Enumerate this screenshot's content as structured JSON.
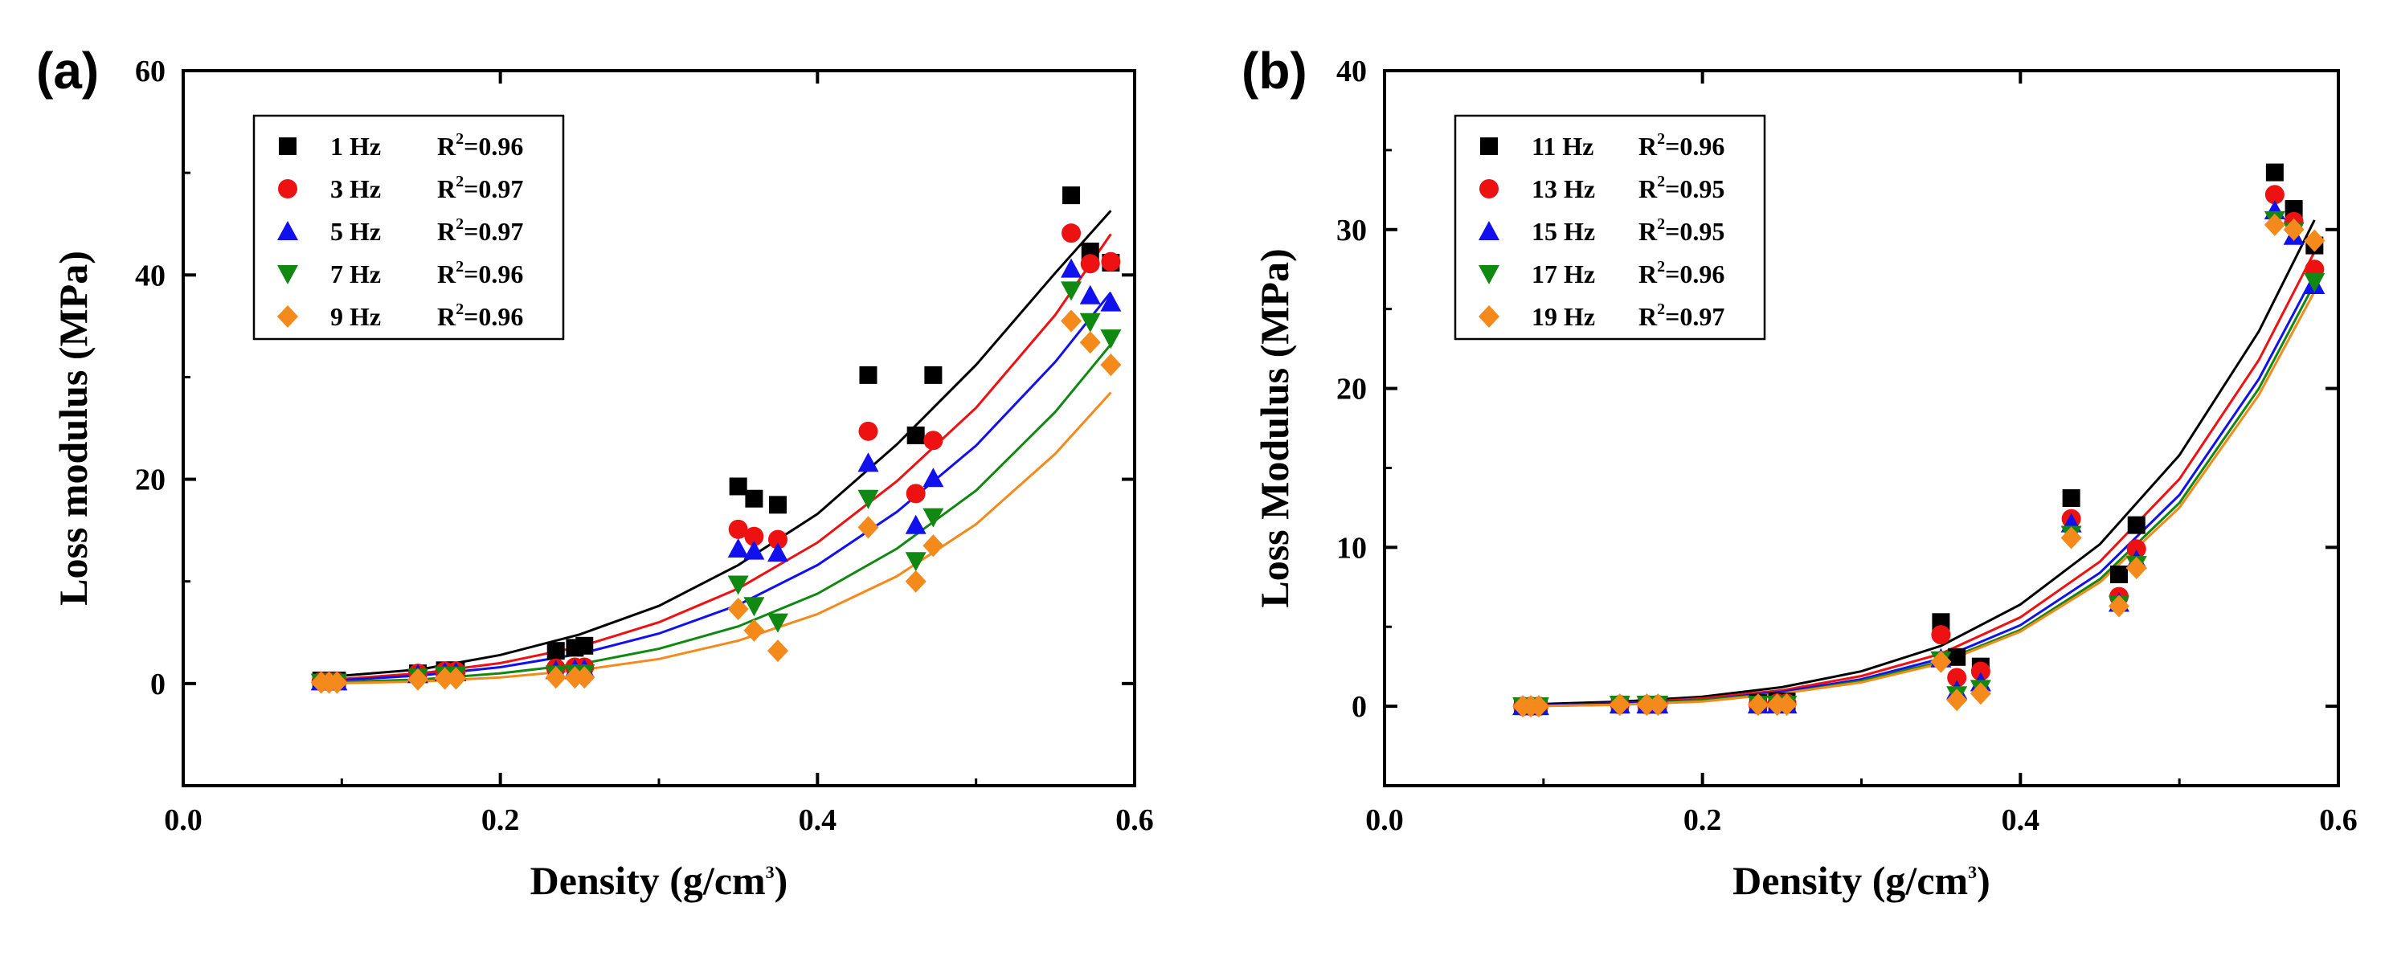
{
  "chart_data": [
    {
      "type": "scatter",
      "panel_label": "(a)",
      "xlabel": "Density (g/cm3)",
      "xlabel_parts": {
        "main": "Density (g/cm",
        "sup": "3",
        "close": ")"
      },
      "ylabel": "Loss modulus (MPa)",
      "xlim": [
        0.0,
        0.6
      ],
      "ylim": [
        -10,
        60
      ],
      "xticks": [
        0.0,
        0.2,
        0.4,
        0.6
      ],
      "xtick_labels": [
        "0.0",
        "0.2",
        "0.4",
        "0.6"
      ],
      "yticks": [
        0,
        20,
        40,
        60
      ],
      "ytick_labels": [
        "0",
        "20",
        "40",
        "60"
      ],
      "grid": false,
      "legend_position": "top-left",
      "fit": "exponential",
      "x": [
        0.087,
        0.092,
        0.097,
        0.148,
        0.165,
        0.172,
        0.235,
        0.247,
        0.253,
        0.35,
        0.36,
        0.375,
        0.432,
        0.462,
        0.473,
        0.56,
        0.572,
        0.585
      ],
      "series": [
        {
          "name": "1 Hz",
          "r2_label": "R",
          "r2_value": "=0.96",
          "color": "#000000",
          "marker": "square",
          "values": [
            0.3,
            0.3,
            0.3,
            1.0,
            1.3,
            1.3,
            3.2,
            3.5,
            3.7,
            19.3,
            18.1,
            17.5,
            30.2,
            24.3,
            30.2,
            47.8,
            42.3,
            41.2
          ],
          "fit_points": [
            [
              0.087,
              0.6
            ],
            [
              0.15,
              1.4
            ],
            [
              0.2,
              2.8
            ],
            [
              0.25,
              4.8
            ],
            [
              0.3,
              7.6
            ],
            [
              0.35,
              11.6
            ],
            [
              0.4,
              16.6
            ],
            [
              0.45,
              23.4
            ],
            [
              0.5,
              31.2
            ],
            [
              0.55,
              40.2
            ],
            [
              0.585,
              46.3
            ]
          ]
        },
        {
          "name": "3 Hz",
          "r2_label": "R",
          "r2_value": "=0.97",
          "color": "#ee1111",
          "marker": "circle",
          "values": [
            0.2,
            0.2,
            0.2,
            1.0,
            1.2,
            1.2,
            1.5,
            1.6,
            1.6,
            15.1,
            14.4,
            14.1,
            24.7,
            18.6,
            23.8,
            44.1,
            41.1,
            41.3
          ],
          "fit_points": [
            [
              0.087,
              0.3
            ],
            [
              0.15,
              1.0
            ],
            [
              0.2,
              2.0
            ],
            [
              0.25,
              3.6
            ],
            [
              0.3,
              6.0
            ],
            [
              0.35,
              9.3
            ],
            [
              0.4,
              13.8
            ],
            [
              0.45,
              19.8
            ],
            [
              0.5,
              27.0
            ],
            [
              0.55,
              36.1
            ],
            [
              0.585,
              44.0
            ]
          ]
        },
        {
          "name": "5 Hz",
          "r2_label": "R",
          "r2_value": "=0.97",
          "color": "#1111ee",
          "marker": "triangle-up",
          "values": [
            0.2,
            0.2,
            0.2,
            0.9,
            1.1,
            1.1,
            1.3,
            1.4,
            1.4,
            13.2,
            13.0,
            12.8,
            21.6,
            15.5,
            20.1,
            40.6,
            38.0,
            37.3
          ],
          "fit_points": [
            [
              0.087,
              0.2
            ],
            [
              0.15,
              0.8
            ],
            [
              0.2,
              1.6
            ],
            [
              0.25,
              2.9
            ],
            [
              0.3,
              4.9
            ],
            [
              0.35,
              7.7
            ],
            [
              0.4,
              11.6
            ],
            [
              0.45,
              16.8
            ],
            [
              0.5,
              23.3
            ],
            [
              0.55,
              31.5
            ],
            [
              0.585,
              38.3
            ]
          ]
        },
        {
          "name": "7 Hz",
          "r2_label": "R",
          "r2_value": "=0.96",
          "color": "#118811",
          "marker": "triangle-down",
          "values": [
            0.1,
            0.1,
            0.1,
            0.6,
            0.8,
            0.8,
            0.9,
            1.0,
            1.0,
            9.7,
            7.6,
            6.0,
            18.1,
            12.0,
            16.3,
            38.5,
            35.4,
            33.8
          ],
          "fit_points": [
            [
              0.087,
              0.1
            ],
            [
              0.15,
              0.4
            ],
            [
              0.2,
              1.0
            ],
            [
              0.25,
              1.9
            ],
            [
              0.3,
              3.4
            ],
            [
              0.35,
              5.6
            ],
            [
              0.4,
              8.8
            ],
            [
              0.45,
              13.2
            ],
            [
              0.5,
              18.9
            ],
            [
              0.55,
              26.6
            ],
            [
              0.585,
              33.2
            ]
          ]
        },
        {
          "name": "9 Hz",
          "r2_label": "R",
          "r2_value": "=0.96",
          "color": "#f58a1c",
          "marker": "diamond",
          "values": [
            0.1,
            0.1,
            0.1,
            0.4,
            0.5,
            0.5,
            0.6,
            0.6,
            0.6,
            7.3,
            5.2,
            3.2,
            15.3,
            10.0,
            13.5,
            35.5,
            33.4,
            31.2
          ],
          "fit_points": [
            [
              0.087,
              0.0
            ],
            [
              0.15,
              0.2
            ],
            [
              0.2,
              0.6
            ],
            [
              0.25,
              1.3
            ],
            [
              0.3,
              2.4
            ],
            [
              0.35,
              4.2
            ],
            [
              0.4,
              6.8
            ],
            [
              0.45,
              10.5
            ],
            [
              0.5,
              15.6
            ],
            [
              0.55,
              22.5
            ],
            [
              0.585,
              28.5
            ]
          ]
        }
      ]
    },
    {
      "type": "scatter",
      "panel_label": "(b)",
      "xlabel": "Density (g/cm3)",
      "xlabel_parts": {
        "main": "Density (g/cm",
        "sup": "3",
        "close": ")"
      },
      "ylabel": "Loss Modulus (MPa)",
      "xlim": [
        0.0,
        0.6
      ],
      "ylim": [
        -5,
        40
      ],
      "xticks": [
        0.0,
        0.2,
        0.4,
        0.6
      ],
      "xtick_labels": [
        "0.0",
        "0.2",
        "0.4",
        "0.6"
      ],
      "yticks": [
        0,
        10,
        20,
        30,
        40
      ],
      "ytick_labels": [
        "0",
        "10",
        "20",
        "30",
        "40"
      ],
      "grid": false,
      "legend_position": "top-left",
      "fit": "exponential",
      "x": [
        0.087,
        0.092,
        0.097,
        0.148,
        0.165,
        0.172,
        0.235,
        0.247,
        0.253,
        0.35,
        0.36,
        0.375,
        0.432,
        0.462,
        0.473,
        0.56,
        0.572,
        0.585
      ],
      "series": [
        {
          "name": "11 Hz",
          "r2_label": "R",
          "r2_value": "=0.96",
          "color": "#000000",
          "marker": "square",
          "values": [
            0.0,
            0.0,
            0.0,
            0.1,
            0.1,
            0.1,
            0.2,
            0.3,
            0.3,
            5.3,
            3.1,
            2.5,
            13.1,
            8.3,
            11.4,
            33.6,
            31.3,
            29.0
          ],
          "fit_points": [
            [
              0.087,
              0.1
            ],
            [
              0.15,
              0.3
            ],
            [
              0.2,
              0.6
            ],
            [
              0.25,
              1.2
            ],
            [
              0.3,
              2.2
            ],
            [
              0.35,
              3.8
            ],
            [
              0.4,
              6.4
            ],
            [
              0.45,
              10.2
            ],
            [
              0.5,
              15.8
            ],
            [
              0.55,
              23.6
            ],
            [
              0.585,
              30.6
            ]
          ]
        },
        {
          "name": "13 Hz",
          "r2_label": "R",
          "r2_value": "=0.95",
          "color": "#ee1111",
          "marker": "circle",
          "values": [
            0.0,
            0.0,
            0.0,
            0.1,
            0.1,
            0.1,
            0.1,
            0.2,
            0.2,
            4.5,
            1.8,
            2.2,
            11.8,
            6.9,
            9.9,
            32.2,
            30.5,
            27.5
          ],
          "fit_points": [
            [
              0.087,
              0.0
            ],
            [
              0.15,
              0.2
            ],
            [
              0.2,
              0.5
            ],
            [
              0.25,
              1.0
            ],
            [
              0.3,
              1.9
            ],
            [
              0.35,
              3.3
            ],
            [
              0.4,
              5.6
            ],
            [
              0.45,
              9.1
            ],
            [
              0.5,
              14.3
            ],
            [
              0.55,
              21.8
            ],
            [
              0.585,
              28.6
            ]
          ]
        },
        {
          "name": "15 Hz",
          "r2_label": "R",
          "r2_value": "=0.95",
          "color": "#1111ee",
          "marker": "triangle-up",
          "values": [
            0.0,
            0.0,
            0.0,
            0.1,
            0.1,
            0.1,
            0.1,
            0.1,
            0.1,
            3.0,
            1.0,
            1.5,
            11.5,
            6.5,
            9.2,
            31.2,
            29.6,
            26.5
          ],
          "fit_points": [
            [
              0.087,
              0.0
            ],
            [
              0.15,
              0.2
            ],
            [
              0.2,
              0.4
            ],
            [
              0.25,
              0.9
            ],
            [
              0.3,
              1.7
            ],
            [
              0.35,
              3.0
            ],
            [
              0.4,
              5.1
            ],
            [
              0.45,
              8.4
            ],
            [
              0.5,
              13.3
            ],
            [
              0.55,
              20.6
            ],
            [
              0.585,
              27.2
            ]
          ]
        },
        {
          "name": "17 Hz",
          "r2_label": "R",
          "r2_value": "=0.96",
          "color": "#118811",
          "marker": "triangle-down",
          "values": [
            0.0,
            0.0,
            0.0,
            0.1,
            0.1,
            0.1,
            0.1,
            0.1,
            0.1,
            2.9,
            0.7,
            1.1,
            10.8,
            6.4,
            8.9,
            30.6,
            29.9,
            26.7
          ],
          "fit_points": [
            [
              0.087,
              0.0
            ],
            [
              0.15,
              0.1
            ],
            [
              0.2,
              0.4
            ],
            [
              0.25,
              0.8
            ],
            [
              0.3,
              1.6
            ],
            [
              0.35,
              2.8
            ],
            [
              0.4,
              4.8
            ],
            [
              0.45,
              8.0
            ],
            [
              0.5,
              12.8
            ],
            [
              0.55,
              20.0
            ],
            [
              0.585,
              26.6
            ]
          ]
        },
        {
          "name": "19 Hz",
          "r2_label": "R",
          "r2_value": "=0.97",
          "color": "#f58a1c",
          "marker": "diamond",
          "values": [
            0.0,
            0.0,
            0.0,
            0.1,
            0.1,
            0.1,
            0.1,
            0.1,
            0.1,
            2.8,
            0.4,
            0.8,
            10.6,
            6.3,
            8.7,
            30.3,
            30.0,
            29.3
          ],
          "fit_points": [
            [
              0.087,
              0.0
            ],
            [
              0.15,
              0.1
            ],
            [
              0.2,
              0.3
            ],
            [
              0.25,
              0.8
            ],
            [
              0.3,
              1.5
            ],
            [
              0.35,
              2.7
            ],
            [
              0.4,
              4.7
            ],
            [
              0.45,
              7.8
            ],
            [
              0.5,
              12.5
            ],
            [
              0.55,
              19.6
            ],
            [
              0.585,
              26.1
            ]
          ]
        }
      ]
    }
  ]
}
